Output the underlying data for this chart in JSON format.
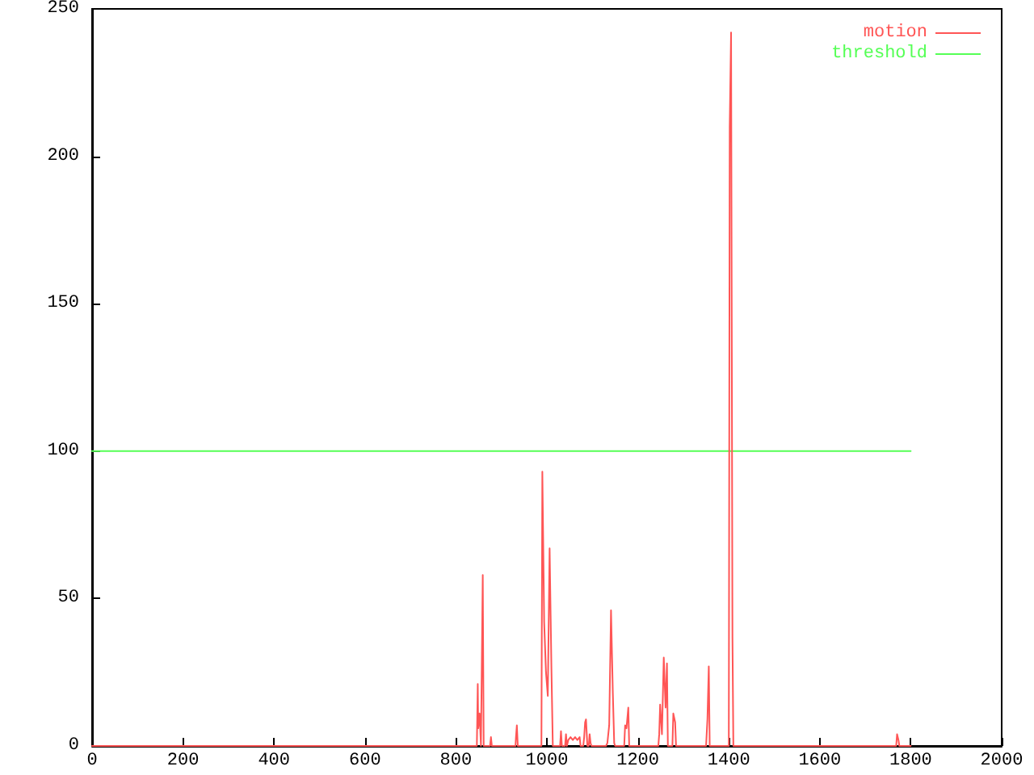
{
  "chart_data": {
    "type": "line",
    "xlim": [
      0,
      2000
    ],
    "xticks": [
      0,
      200,
      400,
      600,
      800,
      1000,
      1200,
      1400,
      1600,
      1800,
      2000
    ],
    "ylim": [
      0,
      250
    ],
    "yticks": [
      0,
      50,
      100,
      150,
      200,
      250
    ],
    "grid": false,
    "legend": "top right",
    "marker": "none",
    "line_style": "solid",
    "series": [
      {
        "name": "motion",
        "color": "#ff5555",
        "x": [
          0,
          846,
          848,
          849,
          852,
          855,
          857,
          859,
          861,
          875,
          877,
          879,
          931,
          932,
          934,
          936,
          988,
          990,
          994,
          998,
          1002,
          1006,
          1010,
          1013,
          1029,
          1031,
          1033,
          1040,
          1042,
          1044,
          1047,
          1052,
          1057,
          1062,
          1067,
          1072,
          1074,
          1080,
          1082,
          1084,
          1086,
          1089,
          1092,
          1094,
          1096,
          1098,
          1130,
          1133,
          1137,
          1141,
          1145,
          1148,
          1150,
          1170,
          1172,
          1175,
          1179,
          1181,
          1245,
          1247,
          1249,
          1253,
          1257,
          1261,
          1264,
          1266,
          1276,
          1278,
          1282,
          1284,
          1350,
          1353,
          1356,
          1358,
          1400,
          1402,
          1405,
          1408,
          1410,
          1768,
          1770,
          1773,
          1775,
          1800
        ],
        "values": [
          0,
          0,
          21,
          6,
          11,
          0,
          0,
          58,
          0,
          0,
          3,
          0,
          0,
          3,
          7,
          0,
          0,
          93,
          42,
          25,
          17,
          67,
          26,
          0,
          0,
          5,
          0,
          0,
          4,
          0,
          2,
          3,
          2,
          3,
          2,
          3,
          0,
          0,
          3,
          8,
          9,
          0,
          0,
          4,
          1,
          0,
          0,
          1,
          7,
          46,
          18,
          1,
          0,
          0,
          7,
          6,
          13,
          0,
          0,
          4,
          14,
          4,
          30,
          13,
          28,
          0,
          0,
          11,
          8,
          0,
          0,
          9,
          27,
          0,
          0,
          210,
          242,
          37,
          0,
          0,
          4,
          2,
          0,
          0
        ]
      },
      {
        "name": "threshold",
        "color": "#55ff55",
        "x": [
          0,
          1800
        ],
        "values": [
          100,
          100
        ]
      }
    ]
  }
}
